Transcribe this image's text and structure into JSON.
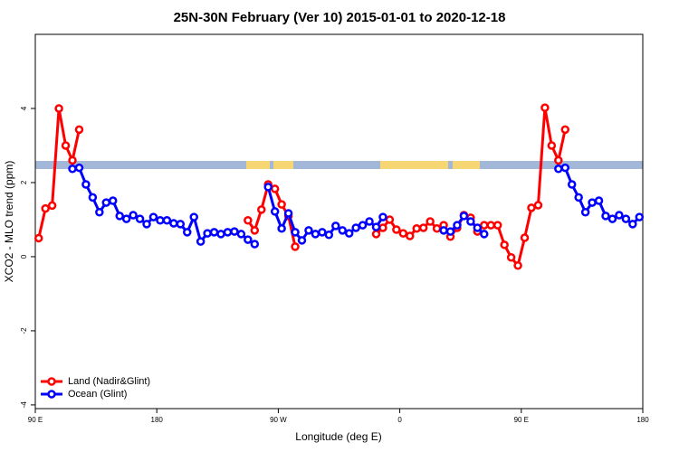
{
  "chart_data": {
    "type": "line",
    "title": "25N-30N February (Ver 10)   2015-01-01 to 2020-12-18",
    "x_label": "Longitude (deg E)",
    "y_label": "XCO2 - MLO trend (ppm)",
    "xlim": [
      90,
      540
    ],
    "ylim": [
      -4.1,
      6
    ],
    "xticks": [
      {
        "value": 90,
        "label": "90 E"
      },
      {
        "value": 180,
        "label": "180"
      },
      {
        "value": 270,
        "label": "90 W"
      },
      {
        "value": 360,
        "label": "0"
      },
      {
        "value": 450,
        "label": "90 E"
      },
      {
        "value": 540,
        "label": "180"
      }
    ],
    "yticks": [
      -4,
      -2,
      0,
      2,
      4
    ],
    "legend": "bottom-left",
    "x": [
      92.5,
      97.5,
      102.5,
      107.5,
      112.5,
      117.5,
      122.5,
      127.5,
      132.5,
      137.5,
      142.5,
      147.5,
      152.5,
      157.5,
      162.5,
      167.5,
      172.5,
      177.5,
      182.5,
      187.5,
      192.5,
      197.5,
      202.5,
      207.5,
      212.5,
      217.5,
      222.5,
      227.5,
      232.5,
      237.5,
      242.5,
      247.5,
      252.5,
      257.5,
      262.5,
      267.5,
      272.5,
      277.5,
      282.5,
      287.5,
      292.5,
      297.5,
      302.5,
      307.5,
      312.5,
      317.5,
      322.5,
      327.5,
      332.5,
      337.5,
      342.5,
      347.5,
      352.5,
      357.5,
      362.5,
      367.5,
      372.5,
      377.5,
      382.5,
      387.5,
      392.5,
      397.5,
      402.5,
      407.5,
      412.5,
      417.5,
      422.5,
      427.5,
      432.5,
      437.5,
      442.5,
      447.5,
      452.5,
      457.5,
      462.5,
      467.5,
      472.5,
      477.5,
      482.5,
      487.5,
      492.5,
      497.5,
      502.5,
      507.5,
      512.5,
      517.5,
      522.5,
      527.5,
      532.5,
      537.5
    ],
    "series": [
      {
        "name": "Land (Nadir&Glint)",
        "color": "#ff0000",
        "values": [
          0.5,
          1.3,
          1.38,
          4.0,
          3.0,
          2.6,
          3.43,
          null,
          null,
          null,
          null,
          null,
          null,
          null,
          null,
          null,
          null,
          null,
          null,
          null,
          null,
          null,
          null,
          null,
          null,
          null,
          null,
          null,
          null,
          null,
          null,
          0.98,
          0.71,
          1.27,
          1.95,
          1.83,
          1.41,
          1.1,
          0.27,
          null,
          null,
          null,
          null,
          null,
          null,
          null,
          null,
          null,
          null,
          null,
          0.61,
          0.78,
          1.0,
          0.73,
          0.63,
          0.56,
          0.76,
          0.78,
          0.95,
          0.76,
          0.85,
          0.54,
          0.78,
          1.12,
          1.05,
          0.68,
          0.85,
          0.85,
          0.85,
          0.32,
          -0.02,
          -0.24,
          0.51,
          1.32,
          1.39,
          4.02,
          3.0,
          2.6,
          3.43,
          null,
          null,
          null,
          null,
          null,
          null,
          null,
          null,
          null,
          null,
          null
        ]
      },
      {
        "name": "Ocean (Glint)",
        "color": "#0000ff",
        "values": [
          null,
          null,
          null,
          null,
          null,
          2.37,
          2.4,
          1.95,
          1.6,
          1.2,
          1.46,
          1.51,
          1.1,
          1.02,
          1.12,
          1.02,
          0.88,
          1.07,
          0.98,
          0.98,
          0.9,
          0.88,
          0.66,
          1.07,
          0.41,
          0.63,
          0.66,
          0.61,
          0.66,
          0.68,
          0.61,
          0.46,
          0.34,
          null,
          1.88,
          1.22,
          0.76,
          1.17,
          0.66,
          0.44,
          0.71,
          0.61,
          0.66,
          0.59,
          0.83,
          0.71,
          0.63,
          0.78,
          0.85,
          0.95,
          0.8,
          1.07,
          null,
          null,
          null,
          null,
          null,
          null,
          null,
          null,
          0.71,
          0.68,
          0.85,
          1.1,
          0.95,
          0.78,
          0.61,
          null,
          null,
          null,
          null,
          null,
          null,
          null,
          null,
          null,
          null,
          2.37,
          2.4,
          1.95,
          1.6,
          1.2,
          1.46,
          1.51,
          1.1,
          1.02,
          1.12,
          1.02,
          0.88,
          1.07
        ]
      }
    ]
  }
}
